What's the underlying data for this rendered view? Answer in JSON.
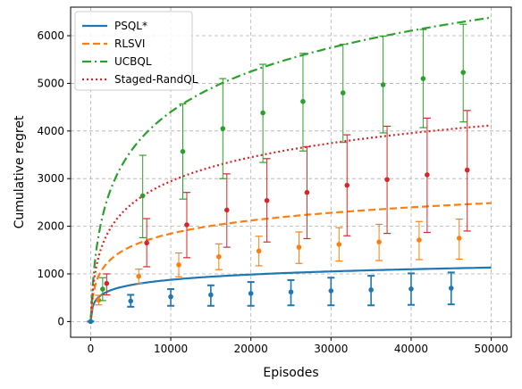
{
  "chart_data": {
    "type": "line",
    "xlabel": "Episodes",
    "ylabel": "Cumulative regret",
    "xlim": [
      -2500,
      52500
    ],
    "ylim": [
      -330,
      6600
    ],
    "xticks": [
      0,
      10000,
      20000,
      30000,
      40000,
      50000
    ],
    "yticks": [
      0,
      1000,
      2000,
      3000,
      4000,
      5000,
      6000
    ],
    "grid": true,
    "legend_position": "top-left",
    "series": [
      {
        "name": "PSQL*",
        "color": "#1f77b4",
        "linestyle": "solid",
        "curve": {
          "a": 0.0,
          "b": 160,
          "c": 42
        },
        "errorbars": [
          {
            "x": 0,
            "y": 0,
            "low": 0,
            "high": 0
          },
          {
            "x": 5000,
            "y": 430,
            "low": 310,
            "high": 560
          },
          {
            "x": 10000,
            "y": 520,
            "low": 330,
            "high": 680
          },
          {
            "x": 15000,
            "y": 560,
            "low": 330,
            "high": 760
          },
          {
            "x": 20000,
            "y": 590,
            "low": 330,
            "high": 830
          },
          {
            "x": 25000,
            "y": 620,
            "low": 340,
            "high": 870
          },
          {
            "x": 30000,
            "y": 645,
            "low": 340,
            "high": 920
          },
          {
            "x": 35000,
            "y": 665,
            "low": 340,
            "high": 960
          },
          {
            "x": 40000,
            "y": 685,
            "low": 350,
            "high": 1010
          },
          {
            "x": 45000,
            "y": 700,
            "low": 360,
            "high": 1030
          }
        ]
      },
      {
        "name": "RLSVI",
        "color": "#ff7f0e",
        "linestyle": "dashed",
        "curve": {
          "a": 0.0,
          "b": 400,
          "c": 100
        },
        "errorbars": [
          {
            "x": 1000,
            "y": 450,
            "low": 350,
            "high": 550
          },
          {
            "x": 6000,
            "y": 950,
            "low": 800,
            "high": 1100
          },
          {
            "x": 11000,
            "y": 1190,
            "low": 940,
            "high": 1440
          },
          {
            "x": 16000,
            "y": 1360,
            "low": 1090,
            "high": 1630
          },
          {
            "x": 21000,
            "y": 1480,
            "low": 1170,
            "high": 1790
          },
          {
            "x": 26000,
            "y": 1560,
            "low": 1220,
            "high": 1880
          },
          {
            "x": 31000,
            "y": 1620,
            "low": 1270,
            "high": 1970
          },
          {
            "x": 36000,
            "y": 1670,
            "low": 1280,
            "high": 2040
          },
          {
            "x": 41000,
            "y": 1710,
            "low": 1300,
            "high": 2100
          },
          {
            "x": 46000,
            "y": 1750,
            "low": 1310,
            "high": 2150
          }
        ]
      },
      {
        "name": "UCBQL",
        "color": "#2ca02c",
        "linestyle": "dashdot",
        "curve": {
          "a": 0.0,
          "b": 1250,
          "c": 305
        },
        "errorbars": [
          {
            "x": 1500,
            "y": 680,
            "low": 440,
            "high": 920
          },
          {
            "x": 6500,
            "y": 2640,
            "low": 1760,
            "high": 3490
          },
          {
            "x": 11500,
            "y": 3570,
            "low": 2570,
            "high": 4570
          },
          {
            "x": 16500,
            "y": 4050,
            "low": 3000,
            "high": 5100
          },
          {
            "x": 21500,
            "y": 4380,
            "low": 3340,
            "high": 5400
          },
          {
            "x": 26500,
            "y": 4620,
            "low": 3580,
            "high": 5630
          },
          {
            "x": 31500,
            "y": 4800,
            "low": 3760,
            "high": 5820
          },
          {
            "x": 36500,
            "y": 4970,
            "low": 3960,
            "high": 5990
          },
          {
            "x": 41500,
            "y": 5100,
            "low": 4070,
            "high": 6130
          },
          {
            "x": 46500,
            "y": 5230,
            "low": 4190,
            "high": 6240
          }
        ]
      },
      {
        "name": "Staged-RandQL",
        "color": "#d62728",
        "linestyle": "dotted",
        "curve": {
          "a": 0.0,
          "b": 735,
          "c": 185
        },
        "errorbars": [
          {
            "x": 2000,
            "y": 800,
            "low": 560,
            "high": 1000
          },
          {
            "x": 7000,
            "y": 1650,
            "low": 1150,
            "high": 2160
          },
          {
            "x": 12000,
            "y": 2030,
            "low": 1340,
            "high": 2710
          },
          {
            "x": 17000,
            "y": 2340,
            "low": 1560,
            "high": 3100
          },
          {
            "x": 22000,
            "y": 2540,
            "low": 1670,
            "high": 3420
          },
          {
            "x": 27000,
            "y": 2710,
            "low": 1740,
            "high": 3670
          },
          {
            "x": 32000,
            "y": 2860,
            "low": 1800,
            "high": 3920
          },
          {
            "x": 37000,
            "y": 2980,
            "low": 1850,
            "high": 4100
          },
          {
            "x": 42000,
            "y": 3080,
            "low": 1870,
            "high": 4270
          },
          {
            "x": 47000,
            "y": 3180,
            "low": 1900,
            "high": 4430
          }
        ]
      }
    ]
  }
}
